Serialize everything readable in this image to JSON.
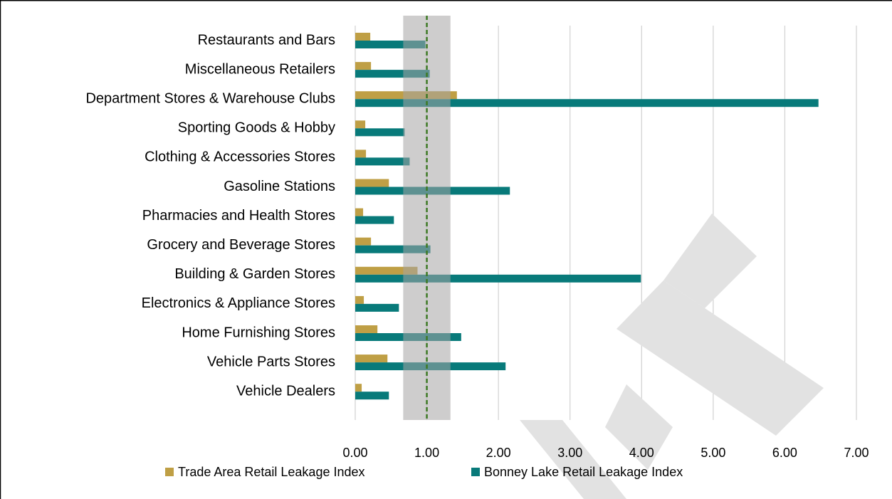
{
  "chart_data": {
    "type": "bar",
    "orientation": "horizontal",
    "categories": [
      "Restaurants and Bars",
      "Miscellaneous Retailers",
      "Department Stores & Warehouse Clubs",
      "Sporting Goods & Hobby",
      "Clothing & Accessories Stores",
      "Gasoline Stations",
      "Pharmacies and Health Stores",
      "Grocery and Beverage Stores",
      "Building & Garden Stores",
      "Electronics & Appliance Stores",
      "Home Furnishing Stores",
      "Vehicle Parts Stores",
      "Vehicle Dealers"
    ],
    "series": [
      {
        "name": "Trade Area Retail Leakage Index",
        "color": "#bf9f45",
        "values": [
          0.21,
          0.22,
          1.42,
          0.14,
          0.15,
          0.47,
          0.11,
          0.22,
          0.87,
          0.12,
          0.31,
          0.45,
          0.09
        ]
      },
      {
        "name": "Bonney Lake Retail Leakage Index",
        "color": "#087a7a",
        "values": [
          0.98,
          1.04,
          6.47,
          0.69,
          0.76,
          2.16,
          0.54,
          1.05,
          3.99,
          0.61,
          1.48,
          2.1,
          0.47
        ]
      }
    ],
    "xlim": [
      0,
      7
    ],
    "xticks": [
      {
        "value": 0,
        "label": "0.00"
      },
      {
        "value": 1,
        "label": "1.00"
      },
      {
        "value": 2,
        "label": "2.00"
      },
      {
        "value": 3,
        "label": "3.00"
      },
      {
        "value": 4,
        "label": "4.00"
      },
      {
        "value": 5,
        "label": "5.00"
      },
      {
        "value": 6,
        "label": "6.00"
      },
      {
        "value": 7,
        "label": "7.00"
      }
    ],
    "grid": true,
    "band": [
      0.67,
      1.33
    ],
    "reference_line": 1,
    "legend": "bottom"
  }
}
